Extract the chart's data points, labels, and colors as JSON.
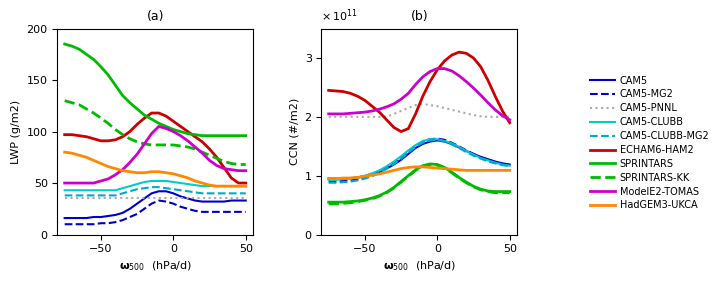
{
  "title_a": "(a)",
  "title_b": "(b)",
  "xlabel": "ω$_{500}$  (hPa/d)",
  "ylabel_a": "LWP (g/m2)",
  "ylabel_b": "CCN (#/m2)",
  "x": [
    -75,
    -70,
    -65,
    -60,
    -55,
    -50,
    -45,
    -40,
    -35,
    -30,
    -25,
    -20,
    -15,
    -10,
    -5,
    0,
    5,
    10,
    15,
    20,
    25,
    30,
    35,
    40,
    45,
    50
  ],
  "xlim": [
    -80,
    55
  ],
  "ylim_a": [
    0,
    200
  ],
  "ylim_b": [
    0,
    350000000000.0
  ],
  "models": [
    "CAM5",
    "CAM5-MG2",
    "CAM5-PNNL",
    "CAM5-CLUBB",
    "CAM5-CLUBB-MG2",
    "ECHAM6-HAM2",
    "SPRINTARS",
    "SPRINTARS-KK",
    "ModelE2-TOMAS",
    "HadGEM3-UKCA"
  ],
  "colors": [
    "#0000cc",
    "#0000cc",
    "#aaaaaa",
    "#00cccc",
    "#00aacc",
    "#cc0000",
    "#00bb00",
    "#00bb00",
    "#cc00cc",
    "#ff8800"
  ],
  "linestyles": [
    "-",
    "--",
    ":",
    "-",
    "--",
    "-",
    "-",
    "--",
    "-",
    "-"
  ],
  "linewidths": [
    1.5,
    1.5,
    1.5,
    1.5,
    1.5,
    2.0,
    2.0,
    2.0,
    2.0,
    2.0
  ],
  "lwp_CAM5": [
    16,
    16,
    16,
    16,
    17,
    17,
    18,
    19,
    21,
    25,
    30,
    35,
    40,
    42,
    42,
    40,
    37,
    35,
    33,
    32,
    32,
    32,
    32,
    33,
    33,
    33
  ],
  "lwp_CAM5MG2": [
    10,
    10,
    10,
    10,
    10,
    11,
    11,
    12,
    14,
    17,
    20,
    25,
    30,
    33,
    32,
    30,
    27,
    25,
    23,
    22,
    22,
    22,
    22,
    22,
    22,
    22
  ],
  "lwp_CAM5PNNL": [
    35,
    35,
    35,
    35,
    35,
    35,
    35,
    35,
    35,
    35,
    35,
    35,
    35,
    35,
    35,
    35,
    35,
    35,
    35,
    35,
    35,
    35,
    35,
    35,
    35,
    35
  ],
  "lwp_CAM5CLUBB": [
    43,
    43,
    43,
    43,
    43,
    43,
    43,
    43,
    45,
    47,
    49,
    51,
    52,
    52,
    52,
    51,
    50,
    49,
    48,
    47,
    47,
    47,
    47,
    47,
    47,
    47
  ],
  "lwp_CAM5CLUBBMG2": [
    38,
    38,
    38,
    38,
    38,
    38,
    38,
    38,
    40,
    42,
    44,
    45,
    46,
    46,
    45,
    44,
    43,
    42,
    41,
    40,
    40,
    40,
    40,
    40,
    40,
    40
  ],
  "lwp_ECHAM6HAM2": [
    97,
    97,
    96,
    95,
    93,
    91,
    91,
    92,
    95,
    100,
    107,
    113,
    118,
    118,
    115,
    110,
    105,
    100,
    95,
    90,
    83,
    75,
    65,
    55,
    50,
    50
  ],
  "lwp_SPRINTARS": [
    185,
    183,
    180,
    175,
    170,
    163,
    155,
    145,
    135,
    128,
    122,
    116,
    112,
    108,
    105,
    102,
    100,
    98,
    97,
    96,
    96,
    96,
    96,
    96,
    96,
    96
  ],
  "lwp_SPRINTARSKK": [
    130,
    128,
    126,
    122,
    118,
    113,
    108,
    102,
    97,
    93,
    90,
    88,
    87,
    87,
    87,
    87,
    86,
    85,
    83,
    80,
    77,
    74,
    71,
    69,
    68,
    68
  ],
  "lwp_ModelE2TOMAS": [
    50,
    50,
    50,
    50,
    50,
    52,
    54,
    58,
    63,
    70,
    78,
    88,
    98,
    105,
    103,
    100,
    96,
    91,
    85,
    79,
    72,
    67,
    64,
    63,
    62,
    62
  ],
  "lwp_HadGEM3UKCA": [
    80,
    79,
    77,
    75,
    72,
    69,
    66,
    64,
    62,
    61,
    60,
    60,
    61,
    61,
    60,
    59,
    57,
    55,
    52,
    50,
    48,
    47,
    47,
    47,
    47,
    47
  ],
  "ccn_CAM5": [
    95000000000.0,
    95000000000.0,
    95000000000.0,
    96000000000.0,
    97000000000.0,
    99000000000.0,
    102000000000.0,
    106000000000.0,
    112000000000.0,
    119000000000.0,
    127000000000.0,
    137000000000.0,
    147000000000.0,
    154000000000.0,
    158000000000.0,
    160000000000.0,
    158000000000.0,
    154000000000.0,
    148000000000.0,
    142000000000.0,
    137000000000.0,
    132000000000.0,
    128000000000.0,
    124000000000.0,
    121000000000.0,
    119000000000.0
  ],
  "ccn_CAM5MG2": [
    90000000000.0,
    90000000000.0,
    91000000000.0,
    92000000000.0,
    94000000000.0,
    97000000000.0,
    101000000000.0,
    107000000000.0,
    114000000000.0,
    122000000000.0,
    131000000000.0,
    141000000000.0,
    151000000000.0,
    158000000000.0,
    162000000000.0,
    163000000000.0,
    161000000000.0,
    156000000000.0,
    150000000000.0,
    143000000000.0,
    137000000000.0,
    131000000000.0,
    127000000000.0,
    123000000000.0,
    120000000000.0,
    118000000000.0
  ],
  "ccn_CAM5PNNL": [
    200000000000.0,
    200000000000.0,
    200000000000.0,
    200000000000.0,
    200000000000.0,
    200000000000.0,
    200000000000.0,
    200000000000.0,
    200000000000.0,
    205000000000.0,
    210000000000.0,
    215000000000.0,
    220000000000.0,
    222000000000.0,
    220000000000.0,
    218000000000.0,
    215000000000.0,
    212000000000.0,
    209000000000.0,
    206000000000.0,
    203000000000.0,
    201000000000.0,
    200000000000.0,
    200000000000.0,
    200000000000.0,
    200000000000.0
  ],
  "ccn_CAM5CLUBB": [
    93000000000.0,
    93000000000.0,
    94000000000.0,
    95000000000.0,
    97000000000.0,
    100000000000.0,
    104000000000.0,
    109000000000.0,
    116000000000.0,
    124000000000.0,
    133000000000.0,
    143000000000.0,
    152000000000.0,
    159000000000.0,
    162000000000.0,
    162000000000.0,
    159000000000.0,
    155000000000.0,
    149000000000.0,
    142000000000.0,
    136000000000.0,
    130000000000.0,
    126000000000.0,
    122000000000.0,
    119000000000.0,
    117000000000.0
  ],
  "ccn_CAM5CLUBBMG2": [
    88000000000.0,
    88000000000.0,
    89000000000.0,
    90000000000.0,
    92000000000.0,
    95000000000.0,
    99000000000.0,
    105000000000.0,
    112000000000.0,
    120000000000.0,
    129000000000.0,
    139000000000.0,
    149000000000.0,
    156000000000.0,
    160000000000.0,
    161000000000.0,
    158000000000.0,
    153000000000.0,
    147000000000.0,
    140000000000.0,
    134000000000.0,
    129000000000.0,
    124000000000.0,
    121000000000.0,
    118000000000.0,
    116000000000.0
  ],
  "ccn_ECHAM6HAM2": [
    245000000000.0,
    244000000000.0,
    243000000000.0,
    240000000000.0,
    235000000000.0,
    228000000000.0,
    218000000000.0,
    208000000000.0,
    195000000000.0,
    182000000000.0,
    175000000000.0,
    180000000000.0,
    205000000000.0,
    235000000000.0,
    260000000000.0,
    280000000000.0,
    295000000000.0,
    305000000000.0,
    310000000000.0,
    308000000000.0,
    300000000000.0,
    285000000000.0,
    262000000000.0,
    235000000000.0,
    210000000000.0,
    190000000000.0
  ],
  "ccn_SPRINTARS": [
    55000000000.0,
    55000000000.0,
    55000000000.0,
    56000000000.0,
    57000000000.0,
    59000000000.0,
    62000000000.0,
    66000000000.0,
    72000000000.0,
    80000000000.0,
    90000000000.0,
    100000000000.0,
    110000000000.0,
    117000000000.0,
    120000000000.0,
    119000000000.0,
    114000000000.0,
    106000000000.0,
    97000000000.0,
    89000000000.0,
    82000000000.0,
    77000000000.0,
    74000000000.0,
    73000000000.0,
    73000000000.0,
    73000000000.0
  ],
  "ccn_SPRINTARSKK": [
    52000000000.0,
    52000000000.0,
    53000000000.0,
    54000000000.0,
    56000000000.0,
    58000000000.0,
    61000000000.0,
    65000000000.0,
    71000000000.0,
    79000000000.0,
    89000000000.0,
    99000000000.0,
    109000000000.0,
    116000000000.0,
    119000000000.0,
    118000000000.0,
    113000000000.0,
    105000000000.0,
    96000000000.0,
    88000000000.0,
    81000000000.0,
    76000000000.0,
    73000000000.0,
    71000000000.0,
    71000000000.0,
    71000000000.0
  ],
  "ccn_ModelE2TOMAS": [
    205000000000.0,
    205000000000.0,
    205000000000.0,
    206000000000.0,
    207000000000.0,
    208000000000.0,
    210000000000.0,
    213000000000.0,
    217000000000.0,
    222000000000.0,
    230000000000.0,
    240000000000.0,
    255000000000.0,
    268000000000.0,
    277000000000.0,
    282000000000.0,
    282000000000.0,
    278000000000.0,
    270000000000.0,
    260000000000.0,
    249000000000.0,
    237000000000.0,
    224000000000.0,
    212000000000.0,
    202000000000.0,
    195000000000.0
  ],
  "ccn_HadGEM3UKCA": [
    95000000000.0,
    95000000000.0,
    96000000000.0,
    96000000000.0,
    97000000000.0,
    99000000000.0,
    101000000000.0,
    103000000000.0,
    106000000000.0,
    109000000000.0,
    112000000000.0,
    114000000000.0,
    115000000000.0,
    115000000000.0,
    114000000000.0,
    113000000000.0,
    112000000000.0,
    111000000000.0,
    110000000000.0,
    109000000000.0,
    109000000000.0,
    109000000000.0,
    109000000000.0,
    109000000000.0,
    109000000000.0,
    109000000000.0
  ]
}
